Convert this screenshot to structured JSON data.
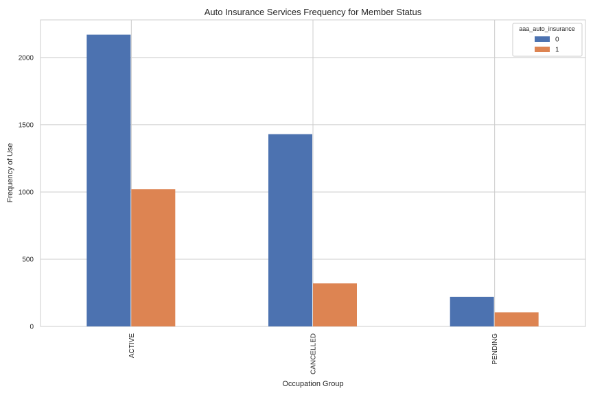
{
  "chart_data": {
    "type": "bar",
    "title": "Auto Insurance Services Frequency for Member Status",
    "xlabel": "Occupation Group",
    "ylabel": "Frequency of Use",
    "categories": [
      "ACTIVE",
      "CANCELLED",
      "PENDING"
    ],
    "series": [
      {
        "name": "0",
        "color": "#4c72b0",
        "values": [
          2170,
          1430,
          220
        ]
      },
      {
        "name": "1",
        "color": "#dd8452",
        "values": [
          1020,
          320,
          105
        ]
      }
    ],
    "ylim": [
      0,
      2280
    ],
    "yticks": [
      0,
      500,
      1000,
      1500,
      2000
    ],
    "grid": true,
    "legend": {
      "title": "aaa_auto_insurance",
      "placement": "top-right"
    }
  }
}
